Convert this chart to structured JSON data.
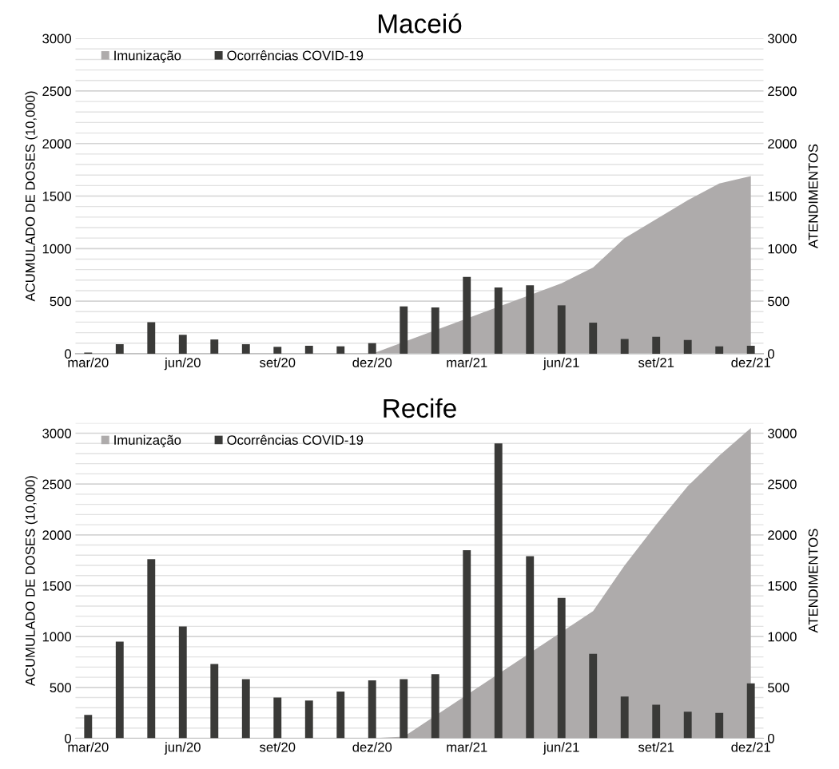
{
  "chart_data": [
    {
      "type": "bar",
      "title": "Maceió",
      "ylabel": "ACUMULADO DE DOSES (10,000)",
      "y2label": "ATENDIMENTOS",
      "categories": [
        "mar/20",
        null,
        null,
        "jun/20",
        null,
        null,
        "set/20",
        null,
        null,
        "dez/20",
        null,
        null,
        "mar/21",
        null,
        null,
        "jun/21",
        null,
        null,
        "set/21",
        null,
        null,
        "dez/21"
      ],
      "series": [
        {
          "name": "Imunização",
          "type": "area",
          "color": "#aeabab",
          "values": [
            0,
            0,
            0,
            0,
            0,
            0,
            0,
            0,
            0,
            0,
            null,
            null,
            null,
            null,
            null,
            670,
            820,
            1100,
            1280,
            1460,
            1620,
            1690
          ]
        },
        {
          "name": "Ocorrências COVID-19",
          "axis": "y2",
          "color": "#3a3a38",
          "values": [
            10,
            90,
            300,
            180,
            135,
            90,
            65,
            75,
            70,
            100,
            450,
            440,
            730,
            630,
            650,
            460,
            295,
            140,
            160,
            130,
            70,
            75
          ]
        }
      ],
      "ylim": [
        0,
        3000
      ],
      "yticks": [
        0,
        {
          "value": 100,
          "label": null
        },
        {
          "value": 200,
          "label": null
        },
        {
          "value": 300,
          "label": null
        },
        {
          "value": 400,
          "label": null
        },
        500,
        {
          "value": 600,
          "label": null
        },
        {
          "value": 700,
          "label": null
        },
        {
          "value": 800,
          "label": null
        },
        {
          "value": 900,
          "label": null
        },
        1000,
        {
          "value": 1100,
          "label": null
        },
        {
          "value": 1200,
          "label": null
        },
        {
          "value": 1300,
          "label": null
        },
        {
          "value": 1400,
          "label": null
        },
        1500,
        {
          "value": 1600,
          "label": null
        },
        {
          "value": 1700,
          "label": null
        },
        {
          "value": 1800,
          "label": null
        },
        {
          "value": 1900,
          "label": null
        },
        2000,
        {
          "value": 2100,
          "label": null
        },
        {
          "value": 2200,
          "label": null
        },
        {
          "value": 2300,
          "label": null
        },
        {
          "value": 2400,
          "label": null
        },
        2500,
        {
          "value": 2600,
          "label": null
        },
        {
          "value": 2700,
          "label": null
        },
        {
          "value": 2800,
          "label": null
        },
        {
          "value": 2900,
          "label": null
        },
        3000
      ],
      "y2lim": [
        0,
        3000
      ],
      "y2ticks": [
        0,
        500,
        1000,
        1500,
        2000,
        2500,
        3000
      ],
      "grid": "y",
      "legend": "top left"
    },
    {
      "type": "bar",
      "title": "Recife",
      "ylabel": "ACUMULADO DE DOSES (10,000)",
      "y2label": "ATENDIMENTOS",
      "categories": [
        "mar/20",
        null,
        null,
        "jun/20",
        null,
        null,
        "set/20",
        null,
        null,
        "dez/20",
        null,
        null,
        "mar/21",
        null,
        null,
        "jun/21",
        null,
        null,
        "set/21",
        null,
        null,
        "dez/21"
      ],
      "series": [
        {
          "name": "Imunização",
          "type": "area",
          "color": "#aeabab",
          "values": [
            0,
            0,
            0,
            0,
            0,
            0,
            0,
            0,
            0,
            0,
            15,
            null,
            null,
            null,
            null,
            null,
            1250,
            1700,
            2100,
            2480,
            2780,
            3050
          ]
        },
        {
          "name": "Ocorrências COVID-19",
          "axis": "y2",
          "color": "#3a3a38",
          "values": [
            230,
            950,
            1760,
            1100,
            730,
            580,
            400,
            370,
            460,
            570,
            580,
            630,
            1850,
            2900,
            1790,
            1380,
            830,
            410,
            330,
            260,
            250,
            540
          ]
        }
      ],
      "ylim": [
        0,
        3100
      ],
      "yticks": [
        0,
        {
          "value": 100,
          "label": null
        },
        {
          "value": 200,
          "label": null
        },
        {
          "value": 300,
          "label": null
        },
        {
          "value": 400,
          "label": null
        },
        500,
        {
          "value": 600,
          "label": null
        },
        {
          "value": 700,
          "label": null
        },
        {
          "value": 800,
          "label": null
        },
        {
          "value": 900,
          "label": null
        },
        1000,
        {
          "value": 1100,
          "label": null
        },
        {
          "value": 1200,
          "label": null
        },
        {
          "value": 1300,
          "label": null
        },
        {
          "value": 1400,
          "label": null
        },
        1500,
        {
          "value": 1600,
          "label": null
        },
        {
          "value": 1700,
          "label": null
        },
        {
          "value": 1800,
          "label": null
        },
        {
          "value": 1900,
          "label": null
        },
        2000,
        {
          "value": 2100,
          "label": null
        },
        {
          "value": 2200,
          "label": null
        },
        {
          "value": 2300,
          "label": null
        },
        {
          "value": 2400,
          "label": null
        },
        2500,
        {
          "value": 2600,
          "label": null
        },
        {
          "value": 2700,
          "label": null
        },
        {
          "value": 2800,
          "label": null
        },
        {
          "value": 2900,
          "label": null
        },
        3000,
        {
          "value": 3100,
          "label": null
        }
      ],
      "y2lim": [
        0,
        3100
      ],
      "y2ticks": [
        0,
        500,
        1000,
        1500,
        2000,
        2500,
        3000
      ],
      "grid": "y",
      "legend": "top left"
    }
  ]
}
